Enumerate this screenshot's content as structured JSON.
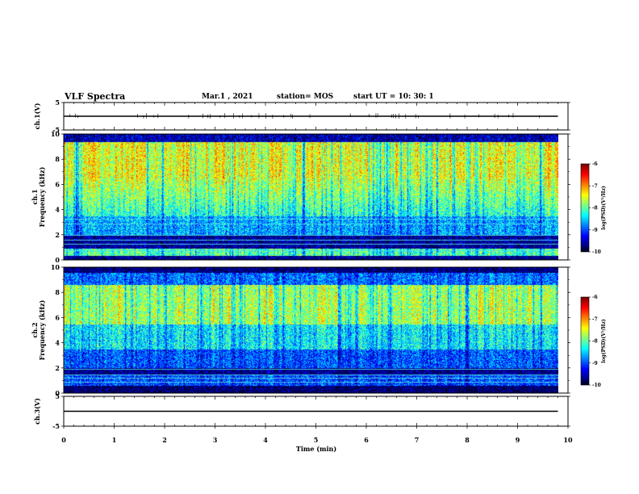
{
  "header": {
    "title": "VLF Spectra",
    "date": "Mar.1  , 2021",
    "station": "station= MOS",
    "start": "start  UT =   10: 30: 1"
  },
  "chart_data": [
    {
      "type": "line",
      "ylabel": "ch.1(V)",
      "ylim": [
        -5,
        5
      ],
      "yticks": [
        -5,
        5
      ],
      "xlim": [
        0,
        10
      ],
      "series": [
        {
          "x": [
            0,
            9.8
          ],
          "y": [
            0,
            0
          ]
        }
      ]
    },
    {
      "type": "heatmap",
      "ylabel": "ch.1\nFrequency (kHz)",
      "ylim": [
        0,
        10
      ],
      "yticks": [
        0,
        2,
        4,
        6,
        8,
        10
      ],
      "xlim": [
        0,
        10
      ],
      "data_xmax": 9.8,
      "colorbar": {
        "range": [
          -10,
          -6
        ],
        "ticks": [
          -6,
          -7,
          -8,
          -9,
          -10
        ],
        "label": "log(PSD)(V²/Hz)"
      }
    },
    {
      "type": "heatmap",
      "ylabel": "ch.2\nFrequency (kHz)",
      "ylim": [
        0,
        10
      ],
      "yticks": [
        0,
        2,
        4,
        6,
        8,
        10
      ],
      "xlim": [
        0,
        10
      ],
      "data_xmax": 9.8,
      "colorbar": {
        "range": [
          -10,
          -6
        ],
        "ticks": [
          -6,
          -7,
          -8,
          -9,
          -10
        ],
        "label": "log(PSD)(V²/Hz)"
      }
    },
    {
      "type": "line",
      "ylabel": "ch.3(V)",
      "ylim": [
        -5,
        5
      ],
      "yticks": [
        -5,
        5
      ],
      "xlim": [
        0,
        10
      ],
      "xlabel": "Time  (min)",
      "xticks": [
        0,
        1,
        2,
        3,
        4,
        5,
        6,
        7,
        8,
        9,
        10
      ],
      "series": [
        {
          "x": [
            0,
            9.8
          ],
          "y": [
            0,
            0
          ]
        }
      ]
    }
  ]
}
